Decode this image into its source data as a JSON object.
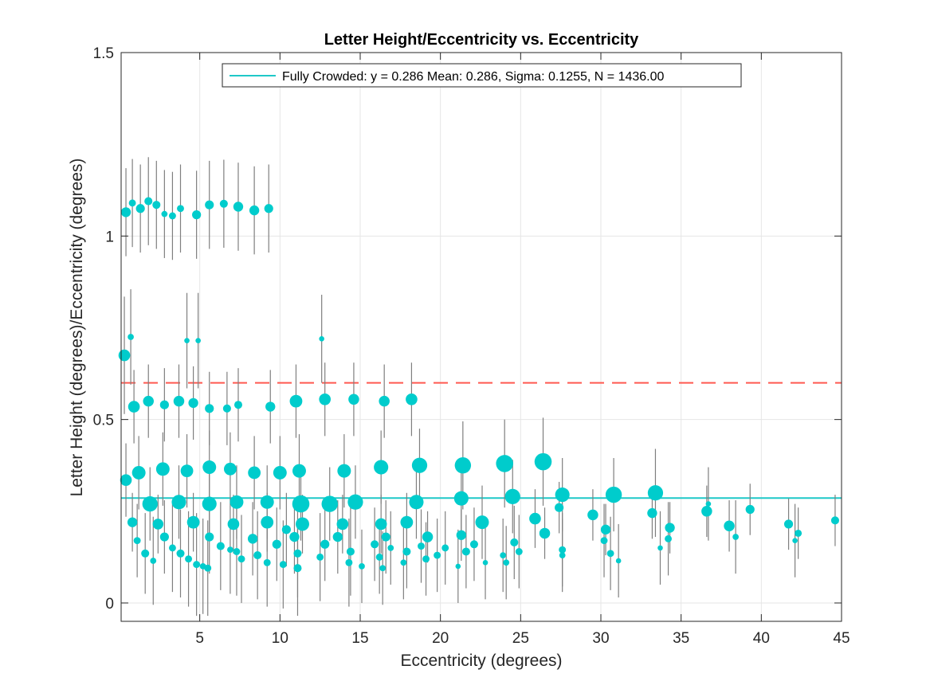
{
  "chart_data": {
    "type": "scatter",
    "title": "Letter Height/Eccentricity vs. Eccentricity",
    "xlabel": "Eccentricity (degrees)",
    "ylabel": "Letter Height (degrees)/Eccentricity (degrees)",
    "xlim": [
      0.1,
      45
    ],
    "ylim": [
      -0.05,
      1.5
    ],
    "xticks": [
      5,
      10,
      15,
      20,
      25,
      30,
      35,
      40,
      45
    ],
    "yticks": [
      0,
      0.5,
      1,
      1.5
    ],
    "ytick_labels": [
      "0",
      "0.5",
      "1",
      "1.5"
    ],
    "grid": true,
    "legend": {
      "position": "top-center",
      "entries": [
        {
          "label": "Fully Crowded: y = 0.286 Mean: 0.286, Sigma: 0.1255, N = 1436.00",
          "color": "#1fc8c8",
          "style": "solid-line"
        }
      ]
    },
    "reference_lines": [
      {
        "y": 0.286,
        "color": "#1fc8c8",
        "style": "solid"
      },
      {
        "y": 0.6,
        "color": "#ff5a50",
        "style": "dashed"
      }
    ],
    "marker_color": "#00cccc",
    "errorbar_color": "#7f7f7f",
    "points": [
      [
        0.4,
        1.065,
        9,
        0.12
      ],
      [
        0.8,
        1.09,
        6,
        0.12
      ],
      [
        1.3,
        1.075,
        8,
        0.12
      ],
      [
        1.8,
        1.095,
        7,
        0.12
      ],
      [
        2.3,
        1.085,
        7,
        0.12
      ],
      [
        2.8,
        1.06,
        5,
        0.12
      ],
      [
        3.3,
        1.055,
        6,
        0.12
      ],
      [
        3.8,
        1.075,
        6,
        0.12
      ],
      [
        4.8,
        1.058,
        8,
        0.12
      ],
      [
        5.6,
        1.085,
        8,
        0.12
      ],
      [
        6.5,
        1.088,
        7,
        0.12
      ],
      [
        7.4,
        1.08,
        9,
        0.12
      ],
      [
        8.4,
        1.07,
        9,
        0.12
      ],
      [
        9.3,
        1.075,
        8,
        0.12
      ],
      [
        0.3,
        0.675,
        11,
        0.16
      ],
      [
        0.7,
        0.725,
        5,
        0.13
      ],
      [
        4.2,
        0.715,
        4,
        0.13
      ],
      [
        4.9,
        0.715,
        4,
        0.13
      ],
      [
        12.6,
        0.72,
        4,
        0.12
      ],
      [
        0.9,
        0.535,
        11,
        0.1
      ],
      [
        1.8,
        0.55,
        10,
        0.1
      ],
      [
        2.8,
        0.54,
        8,
        0.1
      ],
      [
        3.7,
        0.55,
        10,
        0.1
      ],
      [
        4.6,
        0.545,
        9,
        0.1
      ],
      [
        5.6,
        0.53,
        8,
        0.1
      ],
      [
        6.7,
        0.53,
        7,
        0.1
      ],
      [
        7.4,
        0.54,
        7,
        0.1
      ],
      [
        9.4,
        0.535,
        9,
        0.1
      ],
      [
        11,
        0.55,
        12,
        0.1
      ],
      [
        12.8,
        0.555,
        11,
        0.1
      ],
      [
        14.6,
        0.555,
        10,
        0.1
      ],
      [
        16.5,
        0.55,
        10,
        0.1
      ],
      [
        18.2,
        0.555,
        11,
        0.1
      ],
      [
        0.4,
        0.335,
        11,
        0.1
      ],
      [
        1.2,
        0.355,
        13,
        0.1
      ],
      [
        2.7,
        0.365,
        13,
        0.1
      ],
      [
        4.2,
        0.36,
        12,
        0.1
      ],
      [
        5.6,
        0.37,
        13,
        0.1
      ],
      [
        6.9,
        0.365,
        12,
        0.1
      ],
      [
        8.4,
        0.355,
        12,
        0.1
      ],
      [
        10,
        0.355,
        13,
        0.1
      ],
      [
        11.2,
        0.36,
        13,
        0.1
      ],
      [
        14,
        0.36,
        13,
        0.1
      ],
      [
        16.3,
        0.37,
        14,
        0.1
      ],
      [
        18.7,
        0.375,
        15,
        0.1
      ],
      [
        21.4,
        0.375,
        16,
        0.12
      ],
      [
        24,
        0.38,
        17,
        0.12
      ],
      [
        26.4,
        0.385,
        17,
        0.12
      ],
      [
        1.9,
        0.27,
        15,
        0.1
      ],
      [
        3.7,
        0.275,
        14,
        0.1
      ],
      [
        5.6,
        0.27,
        14,
        0.1
      ],
      [
        7.3,
        0.275,
        13,
        0.1
      ],
      [
        9.2,
        0.275,
        13,
        0.1
      ],
      [
        11.3,
        0.27,
        17,
        0.1
      ],
      [
        13.1,
        0.27,
        16,
        0.1
      ],
      [
        14.7,
        0.275,
        15,
        0.1
      ],
      [
        18.5,
        0.275,
        14,
        0.1
      ],
      [
        21.3,
        0.285,
        14,
        0.1
      ],
      [
        24.5,
        0.29,
        15,
        0.1
      ],
      [
        27.6,
        0.295,
        14,
        0.1
      ],
      [
        30.8,
        0.295,
        16,
        0.1
      ],
      [
        33.4,
        0.3,
        15,
        0.12
      ],
      [
        0.8,
        0.22,
        9,
        0.08
      ],
      [
        2.4,
        0.215,
        10,
        0.08
      ],
      [
        4.6,
        0.22,
        12,
        0.08
      ],
      [
        7.1,
        0.215,
        11,
        0.08
      ],
      [
        9.2,
        0.22,
        12,
        0.08
      ],
      [
        11.4,
        0.215,
        13,
        0.08
      ],
      [
        13.9,
        0.215,
        11,
        0.08
      ],
      [
        16.3,
        0.215,
        11,
        0.08
      ],
      [
        17.9,
        0.22,
        12,
        0.08
      ],
      [
        19.2,
        0.18,
        10,
        0.07
      ],
      [
        21.3,
        0.185,
        9,
        0.07
      ],
      [
        22.6,
        0.22,
        13,
        0.1
      ],
      [
        25.9,
        0.23,
        11,
        0.08
      ],
      [
        26.5,
        0.19,
        10,
        0.07
      ],
      [
        27.4,
        0.26,
        8,
        0.07
      ],
      [
        29.5,
        0.24,
        10,
        0.07
      ],
      [
        30.3,
        0.2,
        9,
        0.07
      ],
      [
        33.2,
        0.245,
        9,
        0.07
      ],
      [
        34.3,
        0.205,
        9,
        0.07
      ],
      [
        36.6,
        0.25,
        10,
        0.07
      ],
      [
        38,
        0.21,
        10,
        0.07
      ],
      [
        39.3,
        0.255,
        8,
        0.07
      ],
      [
        41.7,
        0.215,
        8,
        0.07
      ],
      [
        42.3,
        0.19,
        6,
        0.07
      ],
      [
        44.6,
        0.225,
        7,
        0.07
      ],
      [
        1.1,
        0.17,
        6,
        0.1
      ],
      [
        1.6,
        0.135,
        7,
        0.11
      ],
      [
        2.1,
        0.115,
        5,
        0.12
      ],
      [
        2.8,
        0.18,
        8,
        0.1
      ],
      [
        3.3,
        0.15,
        6,
        0.12
      ],
      [
        3.8,
        0.135,
        7,
        0.12
      ],
      [
        4.3,
        0.12,
        6,
        0.13
      ],
      [
        4.8,
        0.105,
        6,
        0.14
      ],
      [
        5.2,
        0.1,
        5,
        0.13
      ],
      [
        5.5,
        0.095,
        6,
        0.13
      ],
      [
        5.6,
        0.18,
        8,
        0.1
      ],
      [
        6.3,
        0.155,
        7,
        0.12
      ],
      [
        6.9,
        0.145,
        5,
        0.12
      ],
      [
        7.3,
        0.14,
        6,
        0.12
      ],
      [
        7.6,
        0.12,
        6,
        0.12
      ],
      [
        8.3,
        0.175,
        9,
        0.1
      ],
      [
        8.6,
        0.13,
        7,
        0.12
      ],
      [
        9.2,
        0.11,
        6,
        0.12
      ],
      [
        9.8,
        0.16,
        8,
        0.1
      ],
      [
        10.2,
        0.105,
        6,
        0.12
      ],
      [
        10.4,
        0.2,
        8,
        0.1
      ],
      [
        10.9,
        0.18,
        9,
        0.1
      ],
      [
        11.1,
        0.135,
        7,
        0.12
      ],
      [
        11.1,
        0.095,
        7,
        0.13
      ],
      [
        12.5,
        0.125,
        6,
        0.12
      ],
      [
        12.8,
        0.16,
        8,
        0.1
      ],
      [
        13.6,
        0.18,
        9,
        0.1
      ],
      [
        14.3,
        0.11,
        6,
        0.12
      ],
      [
        14.4,
        0.14,
        7,
        0.12
      ],
      [
        15.1,
        0.1,
        5,
        0.1
      ],
      [
        15.9,
        0.16,
        7,
        0.1
      ],
      [
        16.2,
        0.125,
        6,
        0.1
      ],
      [
        16.4,
        0.095,
        5,
        0.1
      ],
      [
        16.6,
        0.18,
        8,
        0.1
      ],
      [
        16.9,
        0.15,
        5,
        0.1
      ],
      [
        17.7,
        0.11,
        5,
        0.1
      ],
      [
        17.9,
        0.14,
        7,
        0.1
      ],
      [
        18.8,
        0.155,
        6,
        0.1
      ],
      [
        19.1,
        0.12,
        6,
        0.1
      ],
      [
        19.8,
        0.13,
        6,
        0.1
      ],
      [
        20.3,
        0.15,
        6,
        0.1
      ],
      [
        21.1,
        0.1,
        4,
        0.1
      ],
      [
        21.6,
        0.14,
        7,
        0.1
      ],
      [
        22.1,
        0.16,
        7,
        0.1
      ],
      [
        22.8,
        0.11,
        4,
        0.1
      ],
      [
        23.9,
        0.13,
        5,
        0.1
      ],
      [
        24.1,
        0.11,
        5,
        0.1
      ],
      [
        24.6,
        0.165,
        7,
        0.1
      ],
      [
        24.9,
        0.14,
        6,
        0.1
      ],
      [
        27.6,
        0.145,
        6,
        0.1
      ],
      [
        27.6,
        0.13,
        5,
        0.1
      ],
      [
        30.2,
        0.17,
        6,
        0.1
      ],
      [
        30.6,
        0.135,
        6,
        0.1
      ],
      [
        31.1,
        0.115,
        4,
        0.1
      ],
      [
        33.7,
        0.15,
        4,
        0.1
      ],
      [
        34.2,
        0.175,
        6,
        0.1
      ],
      [
        36.7,
        0.27,
        4,
        0.1
      ],
      [
        38.4,
        0.18,
        5,
        0.1
      ],
      [
        42.1,
        0.17,
        4,
        0.1
      ]
    ]
  }
}
